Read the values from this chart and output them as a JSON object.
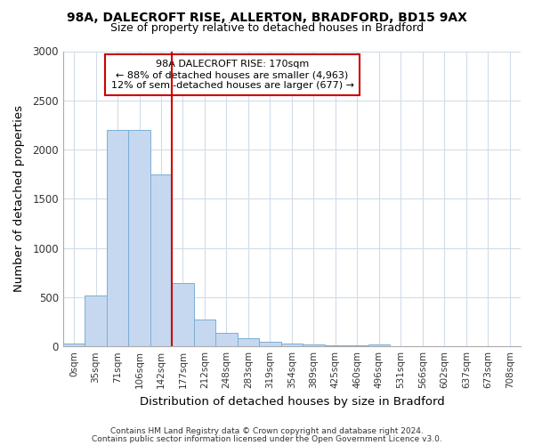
{
  "title1": "98A, DALECROFT RISE, ALLERTON, BRADFORD, BD15 9AX",
  "title2": "Size of property relative to detached houses in Bradford",
  "xlabel": "Distribution of detached houses by size in Bradford",
  "ylabel": "Number of detached properties",
  "categories": [
    "0sqm",
    "35sqm",
    "71sqm",
    "106sqm",
    "142sqm",
    "177sqm",
    "212sqm",
    "248sqm",
    "283sqm",
    "319sqm",
    "354sqm",
    "389sqm",
    "425sqm",
    "460sqm",
    "496sqm",
    "531sqm",
    "566sqm",
    "602sqm",
    "637sqm",
    "673sqm",
    "708sqm"
  ],
  "values": [
    30,
    520,
    2200,
    2200,
    1750,
    640,
    270,
    140,
    80,
    50,
    30,
    20,
    12,
    8,
    20,
    4,
    4,
    3,
    2,
    2,
    2
  ],
  "bar_color": "#c5d8f0",
  "bar_edgecolor": "#7bafd4",
  "ylim": [
    0,
    3000
  ],
  "yticks": [
    0,
    500,
    1000,
    1500,
    2000,
    2500,
    3000
  ],
  "red_line_index": 5,
  "red_line_color": "#cc0000",
  "annotation_line1": "98A DALECROFT RISE: 170sqm",
  "annotation_line2": "← 88% of detached houses are smaller (4,963)",
  "annotation_line3": "12% of semi-detached houses are larger (677) →",
  "footnote1": "Contains HM Land Registry data © Crown copyright and database right 2024.",
  "footnote2": "Contains public sector information licensed under the Open Government Licence v3.0.",
  "bg_color": "#ffffff",
  "plot_bg_color": "#ffffff",
  "grid_color": "#d0dce8"
}
